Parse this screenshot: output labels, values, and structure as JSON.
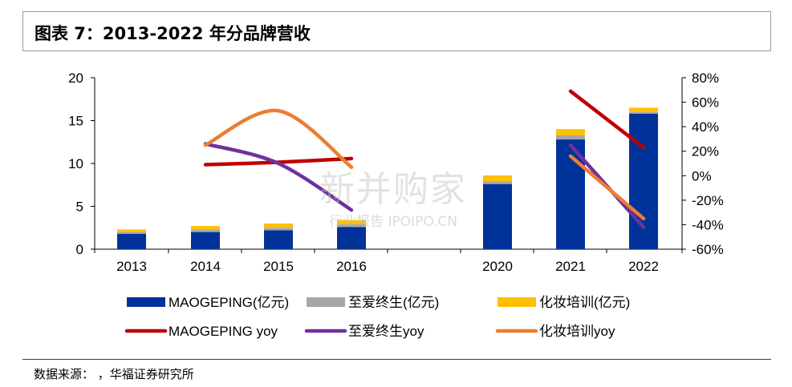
{
  "header": {
    "title": "图表 7：2013-2022 年分品牌营收"
  },
  "source": {
    "text": "数据来源：        ，华福证券研究所"
  },
  "watermark": {
    "main": "新并购家",
    "sub": "行业报告 IPOIPO.CN"
  },
  "colors": {
    "maogeping_bar": "#003399",
    "zhiai_bar": "#a6a6a6",
    "huazhuang_bar": "#ffc000",
    "maogeping_line": "#c00000",
    "zhiai_line": "#7030a0",
    "huazhuang_line": "#ed7d31"
  },
  "chart_data": {
    "type": "bar",
    "categories": [
      "2013",
      "2014",
      "2015",
      "2016",
      "2020",
      "2021",
      "2022"
    ],
    "left_axis": {
      "min": 0,
      "max": 20,
      "ticks": [
        "0",
        "5",
        "10",
        "15",
        "20"
      ]
    },
    "right_axis": {
      "min": -60,
      "max": 80,
      "ticks": [
        "-60%",
        "-40%",
        "-20%",
        "0%",
        "20%",
        "40%",
        "60%",
        "80%"
      ]
    },
    "series": [
      {
        "name": "MAOGEPING(亿元)",
        "type": "bar",
        "stack": "rev",
        "values": [
          1.8,
          2.0,
          2.2,
          2.6,
          7.6,
          12.8,
          15.8
        ]
      },
      {
        "name": "至爱终生(亿元)",
        "type": "bar",
        "stack": "rev",
        "values": [
          0.2,
          0.3,
          0.3,
          0.3,
          0.3,
          0.5,
          0.2
        ]
      },
      {
        "name": "化妆培训(亿元)",
        "type": "bar",
        "stack": "rev",
        "values": [
          0.3,
          0.4,
          0.5,
          0.5,
          0.7,
          0.7,
          0.5
        ]
      },
      {
        "name": "MAOGEPING yoy",
        "type": "line",
        "axis": "right",
        "values": [
          null,
          9,
          11,
          14,
          null,
          69,
          23
        ]
      },
      {
        "name": "至爱终生yoy",
        "type": "line",
        "axis": "right",
        "values": [
          null,
          26,
          10,
          -28,
          null,
          25,
          -42
        ]
      },
      {
        "name": "化妆培训yoy",
        "type": "line",
        "axis": "right",
        "values": [
          null,
          25,
          53,
          7,
          null,
          16,
          -35
        ]
      }
    ],
    "legend": [
      {
        "label": "MAOGEPING(亿元)",
        "kind": "bar"
      },
      {
        "label": "至爱终生(亿元)",
        "kind": "bar"
      },
      {
        "label": "化妆培训(亿元)",
        "kind": "bar"
      },
      {
        "label": "MAOGEPING yoy",
        "kind": "line"
      },
      {
        "label": "至爱终生yoy",
        "kind": "line"
      },
      {
        "label": "化妆培训yoy",
        "kind": "line"
      }
    ]
  }
}
